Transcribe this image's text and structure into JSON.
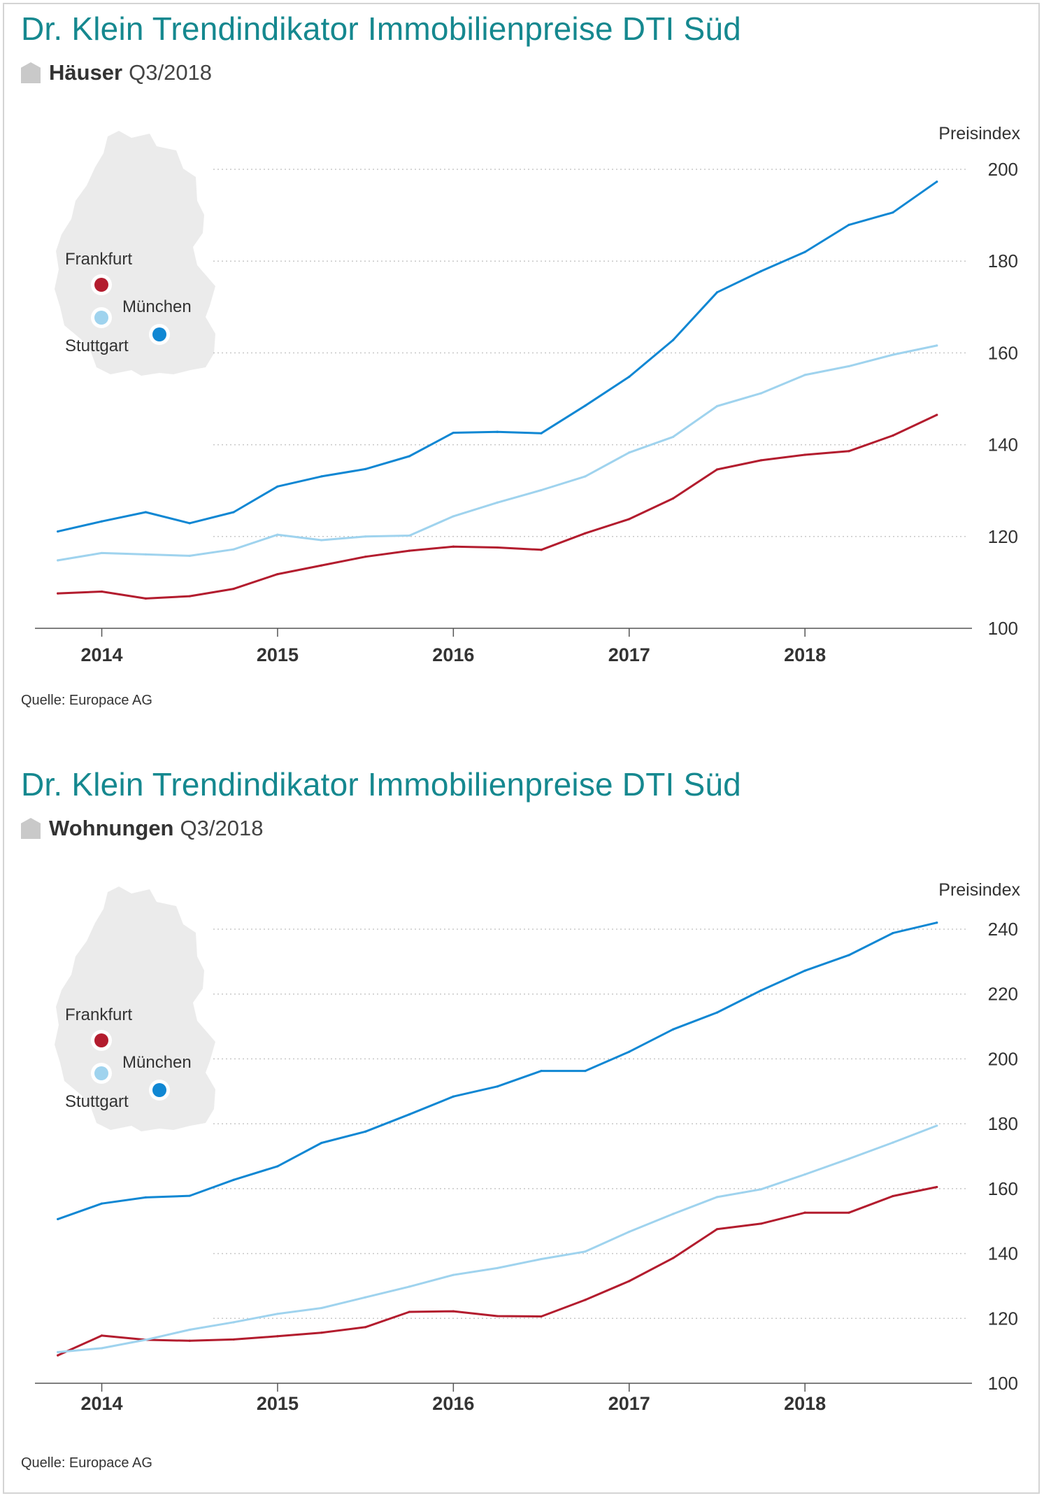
{
  "colors": {
    "title": "#15888f",
    "frankfurt": "#b31c2e",
    "stuttgart": "#9fd3ee",
    "muenchen": "#1087d3",
    "grid": "#c8c8c8",
    "map": "#ebebeb"
  },
  "legend": {
    "frankfurt": "Frankfurt",
    "muenchen": "München",
    "stuttgart": "Stuttgart"
  },
  "panels": [
    {
      "title": "Dr. Klein Trendindikator Immobilienpreise DTI Süd",
      "subtitle_strong": "Häuser",
      "subtitle_period": "Q3/2018",
      "source": "Quelle: Europace AG"
    },
    {
      "title": "Dr. Klein Trendindikator Immobilienpreise DTI Süd",
      "subtitle_strong": "Wohnungen",
      "subtitle_period": "Q3/2018",
      "source": "Quelle: Europace AG"
    }
  ],
  "chart_data": [
    {
      "type": "line",
      "title": "Dr. Klein Trendindikator Immobilienpreise DTI Süd",
      "subtitle": "Häuser Q3/2018",
      "ylabel": "Preisindex",
      "xlabel": "",
      "ylim": [
        100,
        200
      ],
      "yticks": [
        100,
        120,
        140,
        160,
        180,
        200
      ],
      "xlim": [
        2013.62,
        2018.95
      ],
      "xticks": [
        2014,
        2015,
        2016,
        2017,
        2018
      ],
      "xtick_labels": [
        "2014",
        "2015",
        "2016",
        "2017",
        "2018"
      ],
      "grid": "horizontal dotted",
      "legend": "map inset, top-left",
      "x": [
        2013.75,
        2014.0,
        2014.25,
        2014.5,
        2014.75,
        2015.0,
        2015.25,
        2015.5,
        2015.75,
        2016.0,
        2016.25,
        2016.5,
        2016.75,
        2017.0,
        2017.25,
        2017.5,
        2017.75,
        2018.0,
        2018.25,
        2018.5,
        2018.75
      ],
      "series": [
        {
          "name": "Frankfurt",
          "color": "#b31c2e",
          "values": [
            107.6,
            108.0,
            106.5,
            107.0,
            108.6,
            111.8,
            113.7,
            115.6,
            116.9,
            117.8,
            117.6,
            117.1,
            120.7,
            123.8,
            128.3,
            134.6,
            136.6,
            137.8,
            138.6,
            142.0,
            146.5
          ]
        },
        {
          "name": "Stuttgart",
          "color": "#9fd3ee",
          "values": [
            114.8,
            116.4,
            116.1,
            115.8,
            117.2,
            120.4,
            119.2,
            120.0,
            120.2,
            124.4,
            127.4,
            130.1,
            133.1,
            138.3,
            141.7,
            148.4,
            151.2,
            155.2,
            157.1,
            159.6,
            161.6
          ]
        },
        {
          "name": "München",
          "color": "#1087d3",
          "values": [
            121.1,
            123.3,
            125.3,
            122.9,
            125.3,
            130.9,
            133.1,
            134.7,
            137.5,
            142.6,
            142.8,
            142.5,
            148.5,
            154.8,
            162.8,
            173.2,
            177.8,
            182.0,
            187.9,
            190.6,
            197.3
          ]
        }
      ]
    },
    {
      "type": "line",
      "title": "Dr. Klein Trendindikator Immobilienpreise DTI Süd",
      "subtitle": "Wohnungen Q3/2018",
      "ylabel": "Preisindex",
      "xlabel": "",
      "ylim": [
        100,
        240
      ],
      "yticks": [
        100,
        120,
        140,
        160,
        180,
        200,
        220,
        240
      ],
      "xlim": [
        2013.62,
        2018.95
      ],
      "xticks": [
        2014,
        2015,
        2016,
        2017,
        2018
      ],
      "xtick_labels": [
        "2014",
        "2015",
        "2016",
        "2017",
        "2018"
      ],
      "grid": "horizontal dotted",
      "legend": "map inset, top-left",
      "x": [
        2013.75,
        2014.0,
        2014.25,
        2014.5,
        2014.75,
        2015.0,
        2015.25,
        2015.5,
        2015.75,
        2016.0,
        2016.25,
        2016.5,
        2016.75,
        2017.0,
        2017.25,
        2017.5,
        2017.75,
        2018.0,
        2018.25,
        2018.5,
        2018.75
      ],
      "series": [
        {
          "name": "Frankfurt",
          "color": "#b31c2e",
          "values": [
            108.6,
            114.7,
            113.4,
            113.1,
            113.5,
            114.5,
            115.6,
            117.3,
            122.0,
            122.2,
            120.7,
            120.6,
            125.7,
            131.5,
            138.6,
            147.5,
            149.2,
            152.6,
            152.6,
            157.7,
            160.5
          ]
        },
        {
          "name": "Stuttgart",
          "color": "#9fd3ee",
          "values": [
            109.6,
            110.8,
            113.4,
            116.5,
            118.8,
            121.4,
            123.2,
            126.5,
            129.8,
            133.4,
            135.5,
            138.3,
            140.6,
            146.7,
            152.2,
            157.4,
            159.8,
            164.4,
            169.2,
            174.2,
            179.4
          ]
        },
        {
          "name": "München",
          "color": "#1087d3",
          "values": [
            150.6,
            155.4,
            157.3,
            157.8,
            162.7,
            166.9,
            174.1,
            177.6,
            182.9,
            188.4,
            191.5,
            196.3,
            196.3,
            202.2,
            209.1,
            214.3,
            221.1,
            227.2,
            232.0,
            238.8,
            242.0
          ]
        }
      ]
    }
  ]
}
